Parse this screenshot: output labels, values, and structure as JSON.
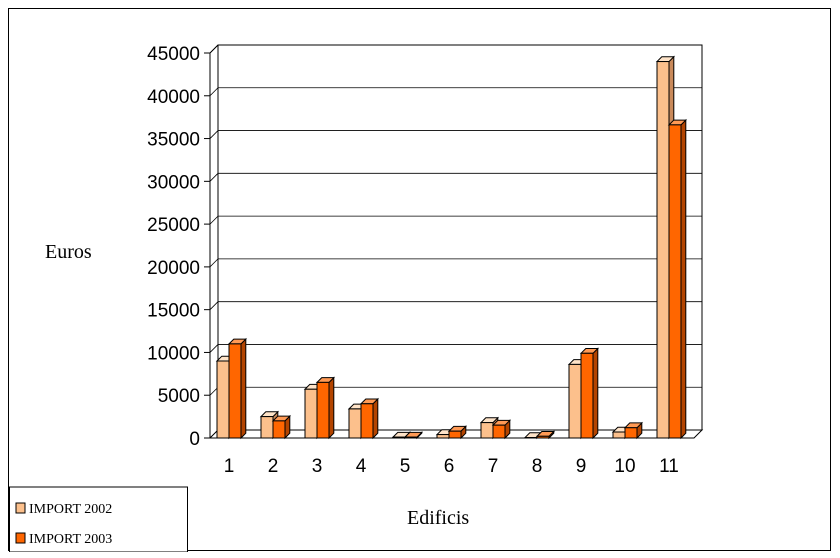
{
  "chart_data": {
    "type": "bar",
    "categories": [
      "1",
      "2",
      "3",
      "4",
      "5",
      "6",
      "7",
      "8",
      "9",
      "10",
      "11"
    ],
    "series": [
      {
        "name": "IMPORT 2002",
        "values": [
          9000,
          2500,
          5700,
          3400,
          100,
          400,
          1800,
          50,
          8600,
          700,
          44000
        ]
      },
      {
        "name": "IMPORT 2003",
        "values": [
          11000,
          2000,
          6500,
          4000,
          100,
          800,
          1500,
          200,
          9900,
          1200,
          36600
        ]
      }
    ],
    "xlabel": "Edificis",
    "ylabel": "Euros",
    "ylim": [
      0,
      45000
    ],
    "yticks": [
      "0",
      "5000",
      "10000",
      "15000",
      "20000",
      "25000",
      "30000",
      "35000",
      "40000",
      "45000"
    ],
    "grid": true,
    "legend_position": "bottom-left",
    "three_d": true
  },
  "colors": {
    "series_2002_front": "#fcc08c",
    "series_2002_side": "#c9895a",
    "series_2002_top": "#fee3c8",
    "series_2003_front": "#ff6600",
    "series_2003_side": "#b34400",
    "series_2003_top": "#ff9a55",
    "outline": "#000000"
  }
}
